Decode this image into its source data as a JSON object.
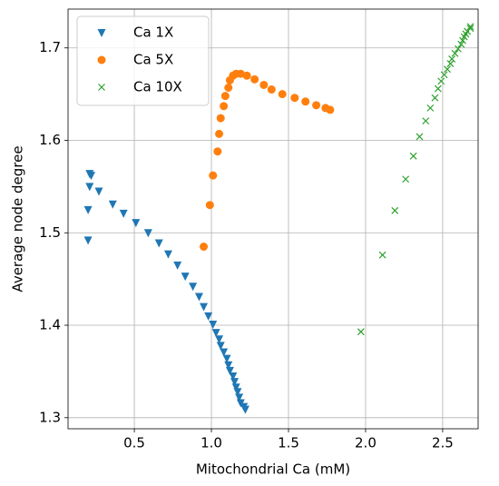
{
  "chart_data": {
    "type": "scatter",
    "xlabel": "Mitochondrial Ca (mM)",
    "ylabel": "Average node degree",
    "xlim": [
      0.07,
      2.73
    ],
    "ylim": [
      1.288,
      1.742
    ],
    "xticks": [
      0.5,
      {
        "value": 1.0,
        "label": "1.0"
      },
      1.5,
      {
        "value": 2.0,
        "label": "2.0"
      },
      2.5
    ],
    "yticks": [
      1.3,
      1.4,
      1.5,
      1.6,
      1.7
    ],
    "grid": true,
    "legend": "upper left",
    "series": [
      {
        "name": "Ca 1X",
        "color": "#1f77b4",
        "marker": "triangle-down",
        "x": [
          0.2,
          0.2,
          0.21,
          0.21,
          0.22,
          0.27,
          0.36,
          0.43,
          0.51,
          0.59,
          0.66,
          0.72,
          0.78,
          0.83,
          0.88,
          0.92,
          0.95,
          0.98,
          1.01,
          1.03,
          1.05,
          1.06,
          1.08,
          1.1,
          1.11,
          1.12,
          1.14,
          1.15,
          1.16,
          1.17,
          1.18,
          1.19,
          1.21,
          1.22
        ],
        "values": [
          1.492,
          1.525,
          1.55,
          1.564,
          1.562,
          1.545,
          1.531,
          1.521,
          1.511,
          1.5,
          1.489,
          1.477,
          1.465,
          1.453,
          1.442,
          1.431,
          1.42,
          1.41,
          1.401,
          1.392,
          1.385,
          1.378,
          1.371,
          1.364,
          1.357,
          1.351,
          1.345,
          1.339,
          1.333,
          1.328,
          1.322,
          1.316,
          1.312,
          1.309
        ]
      },
      {
        "name": "Ca 5X",
        "color": "#ff7f0e",
        "marker": "circle",
        "x": [
          0.95,
          0.99,
          1.01,
          1.04,
          1.05,
          1.06,
          1.08,
          1.09,
          1.11,
          1.12,
          1.14,
          1.16,
          1.19,
          1.23,
          1.28,
          1.34,
          1.39,
          1.46,
          1.54,
          1.61,
          1.68,
          1.74,
          1.77
        ],
        "values": [
          1.485,
          1.53,
          1.562,
          1.588,
          1.607,
          1.624,
          1.637,
          1.648,
          1.657,
          1.665,
          1.67,
          1.672,
          1.672,
          1.67,
          1.666,
          1.66,
          1.655,
          1.65,
          1.646,
          1.642,
          1.638,
          1.635,
          1.633
        ]
      },
      {
        "name": "Ca 10X",
        "color": "#2ca02c",
        "marker": "x",
        "x": [
          1.97,
          2.11,
          2.19,
          2.26,
          2.31,
          2.35,
          2.39,
          2.42,
          2.45,
          2.47,
          2.49,
          2.51,
          2.53,
          2.55,
          2.56,
          2.58,
          2.6,
          2.62,
          2.63,
          2.64,
          2.65,
          2.66,
          2.68,
          2.68
        ],
        "values": [
          1.393,
          1.476,
          1.524,
          1.558,
          1.583,
          1.604,
          1.621,
          1.635,
          1.646,
          1.656,
          1.664,
          1.671,
          1.677,
          1.683,
          1.688,
          1.694,
          1.699,
          1.704,
          1.708,
          1.712,
          1.715,
          1.718,
          1.721,
          1.723
        ]
      }
    ]
  }
}
